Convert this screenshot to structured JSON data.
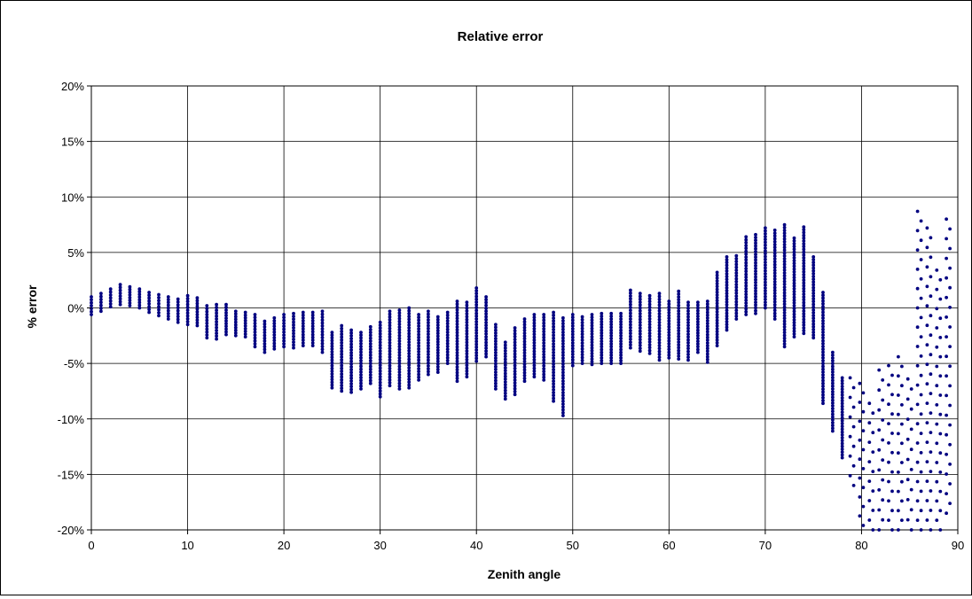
{
  "chart_data": {
    "type": "scatter",
    "title": "Relative error",
    "xlabel": "Zenith angle",
    "ylabel": "% error",
    "xlim": [
      0,
      90
    ],
    "ylim": [
      -20,
      20
    ],
    "x_ticks": [
      0,
      10,
      20,
      30,
      40,
      50,
      60,
      70,
      80,
      90
    ],
    "y_ticks": [
      -20,
      -15,
      -10,
      -5,
      0,
      5,
      10,
      15,
      20
    ],
    "y_tick_format": "percent",
    "grid": true,
    "legend": "none",
    "marker_color": "#000080",
    "series": [
      {
        "name": "",
        "columns": [
          {
            "x": 0,
            "min": -0.6,
            "max": 1.0
          },
          {
            "x": 1,
            "min": -0.3,
            "max": 1.3
          },
          {
            "x": 2,
            "min": 0.1,
            "max": 1.7
          },
          {
            "x": 3,
            "min": 0.3,
            "max": 2.1
          },
          {
            "x": 4,
            "min": 0.2,
            "max": 1.9
          },
          {
            "x": 5,
            "min": 0.0,
            "max": 1.7
          },
          {
            "x": 6,
            "min": -0.4,
            "max": 1.4
          },
          {
            "x": 7,
            "min": -0.7,
            "max": 1.2
          },
          {
            "x": 8,
            "min": -1.0,
            "max": 1.0
          },
          {
            "x": 9,
            "min": -1.3,
            "max": 0.8
          },
          {
            "x": 10,
            "min": -1.5,
            "max": 1.1
          },
          {
            "x": 11,
            "min": -1.6,
            "max": 0.9
          },
          {
            "x": 12,
            "min": -2.7,
            "max": 0.2
          },
          {
            "x": 13,
            "min": -2.8,
            "max": 0.3
          },
          {
            "x": 14,
            "min": -2.4,
            "max": 0.3
          },
          {
            "x": 15,
            "min": -2.5,
            "max": -0.3
          },
          {
            "x": 16,
            "min": -2.6,
            "max": -0.4
          },
          {
            "x": 17,
            "min": -3.5,
            "max": -0.6
          },
          {
            "x": 18,
            "min": -4.0,
            "max": -1.2
          },
          {
            "x": 19,
            "min": -3.7,
            "max": -0.9
          },
          {
            "x": 20,
            "min": -3.5,
            "max": -0.6
          },
          {
            "x": 21,
            "min": -3.6,
            "max": -0.5
          },
          {
            "x": 22,
            "min": -3.4,
            "max": -0.4
          },
          {
            "x": 23,
            "min": -3.4,
            "max": -0.4
          },
          {
            "x": 24,
            "min": -4.0,
            "max": -0.3
          },
          {
            "x": 25,
            "min": -7.2,
            "max": -2.2
          },
          {
            "x": 26,
            "min": -7.5,
            "max": -1.6
          },
          {
            "x": 27,
            "min": -7.6,
            "max": -2.0
          },
          {
            "x": 28,
            "min": -7.3,
            "max": -2.2
          },
          {
            "x": 29,
            "min": -6.8,
            "max": -1.7
          },
          {
            "x": 30,
            "min": -8.0,
            "max": -1.3
          },
          {
            "x": 31,
            "min": -7.0,
            "max": -0.3
          },
          {
            "x": 32,
            "min": -7.3,
            "max": -0.2
          },
          {
            "x": 33,
            "min": -7.2,
            "max": 0.0
          },
          {
            "x": 34,
            "min": -6.5,
            "max": -0.6
          },
          {
            "x": 35,
            "min": -6.0,
            "max": -0.3
          },
          {
            "x": 36,
            "min": -5.8,
            "max": -0.8
          },
          {
            "x": 37,
            "min": -5.0,
            "max": -0.4
          },
          {
            "x": 38,
            "min": -6.6,
            "max": 0.6
          },
          {
            "x": 39,
            "min": -6.2,
            "max": 0.5
          },
          {
            "x": 40,
            "min": -4.8,
            "max": 1.8
          },
          {
            "x": 41,
            "min": -4.4,
            "max": 1.0
          },
          {
            "x": 42,
            "min": -7.3,
            "max": -1.5
          },
          {
            "x": 43,
            "min": -8.2,
            "max": -3.1
          },
          {
            "x": 44,
            "min": -7.8,
            "max": -1.8
          },
          {
            "x": 45,
            "min": -6.6,
            "max": -1.0
          },
          {
            "x": 46,
            "min": -6.2,
            "max": -0.6
          },
          {
            "x": 47,
            "min": -6.5,
            "max": -0.6
          },
          {
            "x": 48,
            "min": -8.4,
            "max": -0.4
          },
          {
            "x": 49,
            "min": -9.7,
            "max": -0.9
          },
          {
            "x": 50,
            "min": -5.2,
            "max": -0.6
          },
          {
            "x": 51,
            "min": -5.0,
            "max": -0.8
          },
          {
            "x": 52,
            "min": -5.1,
            "max": -0.6
          },
          {
            "x": 53,
            "min": -5.0,
            "max": -0.5
          },
          {
            "x": 54,
            "min": -5.0,
            "max": -0.5
          },
          {
            "x": 55,
            "min": -5.0,
            "max": -0.5
          },
          {
            "x": 56,
            "min": -3.6,
            "max": 1.6
          },
          {
            "x": 57,
            "min": -3.9,
            "max": 1.3
          },
          {
            "x": 58,
            "min": -4.1,
            "max": 1.1
          },
          {
            "x": 59,
            "min": -4.7,
            "max": 1.3
          },
          {
            "x": 60,
            "min": -4.5,
            "max": 0.6
          },
          {
            "x": 61,
            "min": -4.6,
            "max": 1.5
          },
          {
            "x": 62,
            "min": -4.7,
            "max": 0.5
          },
          {
            "x": 63,
            "min": -4.0,
            "max": 0.5
          },
          {
            "x": 64,
            "min": -4.9,
            "max": 0.6
          },
          {
            "x": 65,
            "min": -3.4,
            "max": 3.2
          },
          {
            "x": 66,
            "min": -2.0,
            "max": 4.6
          },
          {
            "x": 67,
            "min": -1.0,
            "max": 4.7
          },
          {
            "x": 68,
            "min": -0.6,
            "max": 6.4
          },
          {
            "x": 69,
            "min": -0.5,
            "max": 6.6
          },
          {
            "x": 70,
            "min": 0.0,
            "max": 7.2
          },
          {
            "x": 71,
            "min": -1.0,
            "max": 7.0
          },
          {
            "x": 72,
            "min": -3.5,
            "max": 7.5
          },
          {
            "x": 73,
            "min": -2.6,
            "max": 6.3
          },
          {
            "x": 74,
            "min": -2.3,
            "max": 7.3
          },
          {
            "x": 75,
            "min": -2.7,
            "max": 4.6
          },
          {
            "x": 76,
            "min": -8.6,
            "max": 1.4
          },
          {
            "x": 77,
            "min": -11.1,
            "max": -4.0
          },
          {
            "x": 78,
            "min": -13.5,
            "max": -6.3
          },
          {
            "x": 79,
            "min": -16.0,
            "max": -6.3
          },
          {
            "x": 80,
            "min": -19.6,
            "max": -6.8
          },
          {
            "x": 81,
            "min": -20.0,
            "max": -8.6
          },
          {
            "x": 82,
            "min": -20.0,
            "max": -5.6
          },
          {
            "x": 83,
            "min": -20.0,
            "max": -5.2
          },
          {
            "x": 84,
            "min": -20.0,
            "max": -4.4
          },
          {
            "x": 85,
            "min": -20.0,
            "max": -6.4
          },
          {
            "x": 86,
            "min": -20.0,
            "max": 8.7
          },
          {
            "x": 87,
            "min": -20.0,
            "max": 7.2
          },
          {
            "x": 88,
            "min": -20.0,
            "max": 3.4
          },
          {
            "x": 89,
            "min": -18.5,
            "max": 8.0
          }
        ]
      }
    ]
  }
}
